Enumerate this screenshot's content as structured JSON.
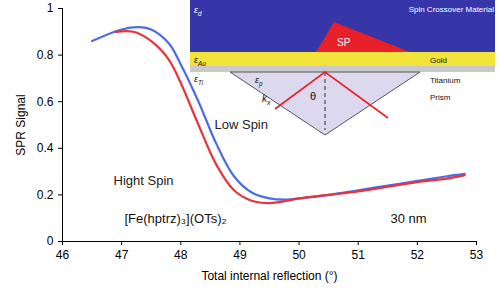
{
  "chart_data": {
    "type": "line",
    "xlabel": "Total internal reflection (°)",
    "ylabel": "SPR Signal",
    "xlim": [
      46,
      53
    ],
    "xticks": [
      46,
      47,
      48,
      49,
      50,
      51,
      52,
      53
    ],
    "ylim": [
      0,
      1
    ],
    "yticks": [
      0,
      0.2,
      0.4,
      0.6,
      0.8,
      1
    ],
    "grid": false,
    "series": [
      {
        "name": "Low Spin",
        "color": "#4a6de5",
        "x": [
          46.5,
          47.0,
          47.3,
          47.5,
          47.8,
          48.0,
          48.3,
          48.6,
          48.9,
          49.2,
          49.5,
          49.8,
          50.0,
          50.5,
          51.0,
          51.5,
          52.0,
          52.5,
          52.8
        ],
        "values": [
          0.86,
          0.91,
          0.92,
          0.91,
          0.85,
          0.76,
          0.6,
          0.42,
          0.28,
          0.21,
          0.185,
          0.18,
          0.185,
          0.2,
          0.22,
          0.24,
          0.26,
          0.28,
          0.29
        ]
      },
      {
        "name": "Hight Spin",
        "color": "#e8333a",
        "x": [
          46.9,
          47.2,
          47.5,
          47.8,
          48.0,
          48.3,
          48.6,
          48.9,
          49.2,
          49.5,
          49.8,
          50.0,
          50.5,
          51.0,
          51.5,
          52.0,
          52.5,
          52.8
        ],
        "values": [
          0.9,
          0.9,
          0.86,
          0.78,
          0.68,
          0.5,
          0.33,
          0.22,
          0.175,
          0.165,
          0.175,
          0.185,
          0.2,
          0.215,
          0.235,
          0.255,
          0.27,
          0.285
        ]
      }
    ],
    "annotations": [
      "[Fe(hptrz)₃](OTs)₂",
      "30 nm"
    ],
    "inset": {
      "layers": [
        {
          "label": "Spin Crossover Material",
          "symbol": {
            "base": "ε",
            "sub": "d"
          }
        },
        {
          "label": "Gold",
          "symbol": {
            "base": "ε",
            "sub": "Au"
          }
        },
        {
          "label": "Titanium",
          "symbol": {
            "base": "ε",
            "sub": "Ti"
          }
        },
        {
          "label": "Prism",
          "symbol": {
            "base": "ε",
            "sub": "p"
          }
        }
      ],
      "surface_plasmon": "SP",
      "angle": "θ",
      "wavevector": {
        "base": "k",
        "sub": "x"
      }
    }
  }
}
